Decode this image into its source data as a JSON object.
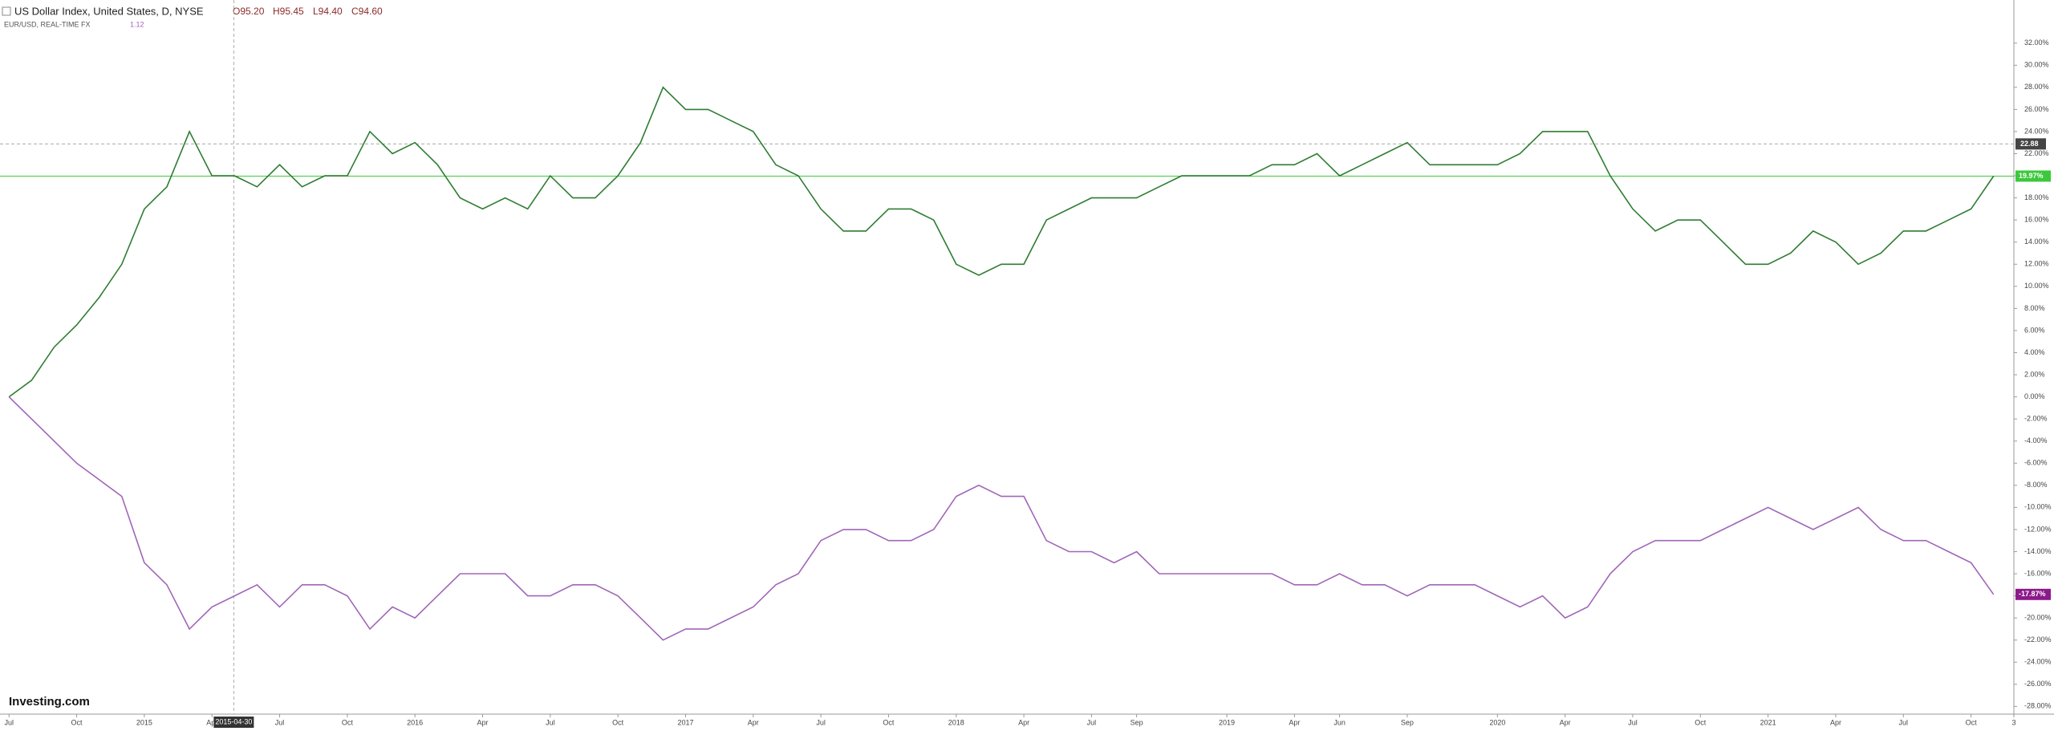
{
  "header": {
    "open": "O95.20",
    "high": "H95.45",
    "low": "L94.40",
    "close": "C94.60",
    "compare_value": "1.12"
  },
  "logo": "Investing.com",
  "chart_data": {
    "type": "line",
    "x": [
      "2014-07",
      "2014-08",
      "2014-09",
      "2014-10",
      "2014-11",
      "2014-12",
      "2015-01",
      "2015-02",
      "2015-03",
      "2015-04",
      "2015-05",
      "2015-06",
      "2015-07",
      "2015-08",
      "2015-09",
      "2015-10",
      "2015-11",
      "2015-12",
      "2016-01",
      "2016-02",
      "2016-03",
      "2016-04",
      "2016-05",
      "2016-06",
      "2016-07",
      "2016-08",
      "2016-09",
      "2016-10",
      "2016-11",
      "2016-12",
      "2017-01",
      "2017-02",
      "2017-03",
      "2017-04",
      "2017-05",
      "2017-06",
      "2017-07",
      "2017-08",
      "2017-09",
      "2017-10",
      "2017-11",
      "2017-12",
      "2018-01",
      "2018-02",
      "2018-03",
      "2018-04",
      "2018-05",
      "2018-06",
      "2018-07",
      "2018-08",
      "2018-09",
      "2018-10",
      "2018-11",
      "2018-12",
      "2019-01",
      "2019-02",
      "2019-03",
      "2019-04",
      "2019-05",
      "2019-06",
      "2019-07",
      "2019-08",
      "2019-09",
      "2019-10",
      "2019-11",
      "2019-12",
      "2020-01",
      "2020-02",
      "2020-03",
      "2020-04",
      "2020-05",
      "2020-06",
      "2020-07",
      "2020-08",
      "2020-09",
      "2020-10",
      "2020-11",
      "2020-12",
      "2021-01",
      "2021-02",
      "2021-03",
      "2021-04",
      "2021-05",
      "2021-06",
      "2021-07",
      "2021-08",
      "2021-09",
      "2021-10",
      "2021-11"
    ],
    "series": [
      {
        "name": "US Dollar Index, United States, D, NYSE",
        "color": "#2e7d32",
        "last_label": "19.97%",
        "last_color": "#3cc83c",
        "values": [
          0,
          1.5,
          4.5,
          6.5,
          9,
          12,
          17,
          19,
          24,
          20,
          20,
          19,
          21,
          19,
          20,
          20,
          24,
          22,
          23,
          21,
          18,
          17,
          18,
          17,
          20,
          18,
          18,
          20,
          23,
          28,
          26,
          26,
          25,
          24,
          21,
          20,
          17,
          15,
          15,
          17,
          17,
          16,
          12,
          11,
          12,
          12,
          16,
          17,
          18,
          18,
          18,
          19,
          20,
          20,
          20,
          20,
          21,
          21,
          22,
          20,
          21,
          22,
          23,
          21,
          21,
          21,
          21,
          22,
          24,
          24,
          24,
          20,
          17,
          15,
          16,
          16,
          14,
          12,
          12,
          13,
          15,
          14,
          12,
          13,
          15,
          15,
          16,
          17,
          19.97
        ]
      },
      {
        "name": "EUR/USD, REAL-TIME FX",
        "color": "#a066b8",
        "last_label": "-17.87%",
        "last_color": "#8b1a8b",
        "values": [
          0,
          -2,
          -4,
          -6,
          -7.5,
          -9,
          -15,
          -17,
          -21,
          -19,
          -18,
          -17,
          -19,
          -17,
          -17,
          -18,
          -21,
          -19,
          -20,
          -18,
          -16,
          -16,
          -16,
          -18,
          -18,
          -17,
          -17,
          -18,
          -20,
          -22,
          -21,
          -21,
          -20,
          -19,
          -17,
          -16,
          -13,
          -12,
          -12,
          -13,
          -13,
          -12,
          -9,
          -8,
          -9,
          -9,
          -13,
          -14,
          -14,
          -15,
          -14,
          -16,
          -16,
          -16,
          -16,
          -16,
          -16,
          -17,
          -17,
          -16,
          -17,
          -17,
          -18,
          -17,
          -17,
          -17,
          -18,
          -19,
          -18,
          -20,
          -19,
          -16,
          -14,
          -13,
          -13,
          -13,
          -12,
          -11,
          -10,
          -11,
          -12,
          -11,
          -10,
          -12,
          -13,
          -13,
          -14,
          -15,
          -17.87
        ]
      }
    ],
    "xlim": [
      "2014-06-19",
      "2021-11-28"
    ],
    "xticks": [
      {
        "value": "2014-07-01",
        "label": "Jul"
      },
      {
        "value": "2014-10-01",
        "label": "Oct"
      },
      {
        "value": "2015-01-01",
        "label": "2015"
      },
      {
        "value": "2015-04-01",
        "label": "Apr"
      },
      {
        "value": "2015-07-01",
        "label": "Jul"
      },
      {
        "value": "2015-10-01",
        "label": "Oct"
      },
      {
        "value": "2016-01-01",
        "label": "2016"
      },
      {
        "value": "2016-04-01",
        "label": "Apr"
      },
      {
        "value": "2016-07-01",
        "label": "Jul"
      },
      {
        "value": "2016-10-01",
        "label": "Oct"
      },
      {
        "value": "2017-01-01",
        "label": "2017"
      },
      {
        "value": "2017-04-01",
        "label": "Apr"
      },
      {
        "value": "2017-07-01",
        "label": "Jul"
      },
      {
        "value": "2017-10-01",
        "label": "Oct"
      },
      {
        "value": "2018-01-01",
        "label": "2018"
      },
      {
        "value": "2018-04-01",
        "label": "Apr"
      },
      {
        "value": "2018-07-01",
        "label": "Jul"
      },
      {
        "value": "2018-09-01",
        "label": "Sep"
      },
      {
        "value": "2019-01-01",
        "label": "2019"
      },
      {
        "value": "2019-04-01",
        "label": "Apr"
      },
      {
        "value": "2019-06-01",
        "label": "Jun"
      },
      {
        "value": "2019-09-01",
        "label": "Sep"
      },
      {
        "value": "2020-01-01",
        "label": "2020"
      },
      {
        "value": "2020-04-01",
        "label": "Apr"
      },
      {
        "value": "2020-07-01",
        "label": "Jul"
      },
      {
        "value": "2020-10-01",
        "label": "Oct"
      },
      {
        "value": "2021-01-01",
        "label": "2021"
      },
      {
        "value": "2021-04-01",
        "label": "Apr"
      },
      {
        "value": "2021-07-01",
        "label": "Jul"
      },
      {
        "value": "2021-10-01",
        "label": "Oct"
      },
      {
        "value": "2021-11-28",
        "label": "3"
      }
    ],
    "ylim": [
      -28.7,
      35.9
    ],
    "yticks": [
      {
        "value": 32,
        "label": "32.00%"
      },
      {
        "value": 30,
        "label": "30.00%"
      },
      {
        "value": 28,
        "label": "28.00%"
      },
      {
        "value": 26,
        "label": "26.00%"
      },
      {
        "value": 24,
        "label": "24.00%"
      },
      {
        "value": 22,
        "label": "22.00%"
      },
      {
        "value": 20,
        "label": "20.00%"
      },
      {
        "value": 18,
        "label": "18.00%"
      },
      {
        "value": 16,
        "label": "16.00%"
      },
      {
        "value": 14,
        "label": "14.00%"
      },
      {
        "value": 12,
        "label": "12.00%"
      },
      {
        "value": 10,
        "label": "10.00%"
      },
      {
        "value": 8,
        "label": "8.00%"
      },
      {
        "value": 6,
        "label": "6.00%"
      },
      {
        "value": 4,
        "label": "4.00%"
      },
      {
        "value": 2,
        "label": "2.00%"
      },
      {
        "value": 0,
        "label": "0.00%"
      },
      {
        "value": -2,
        "label": "-2.00%"
      },
      {
        "value": -4,
        "label": "-4.00%"
      },
      {
        "value": -6,
        "label": "-6.00%"
      },
      {
        "value": -8,
        "label": "-8.00%"
      },
      {
        "value": -10,
        "label": "-10.00%"
      },
      {
        "value": -12,
        "label": "-12.00%"
      },
      {
        "value": -14,
        "label": "-14.00%"
      },
      {
        "value": -16,
        "label": "-16.00%"
      },
      {
        "value": -18,
        "label": "-18.00%"
      },
      {
        "value": -20,
        "label": "-20.00%"
      },
      {
        "value": -22,
        "label": "-22.00%"
      },
      {
        "value": -24,
        "label": "-24.00%"
      },
      {
        "value": -26,
        "label": "-26.00%"
      },
      {
        "value": -28,
        "label": "-28.00%"
      }
    ],
    "crosshair": {
      "x": "2015-04-30",
      "y": 22.88
    },
    "grid": false
  }
}
